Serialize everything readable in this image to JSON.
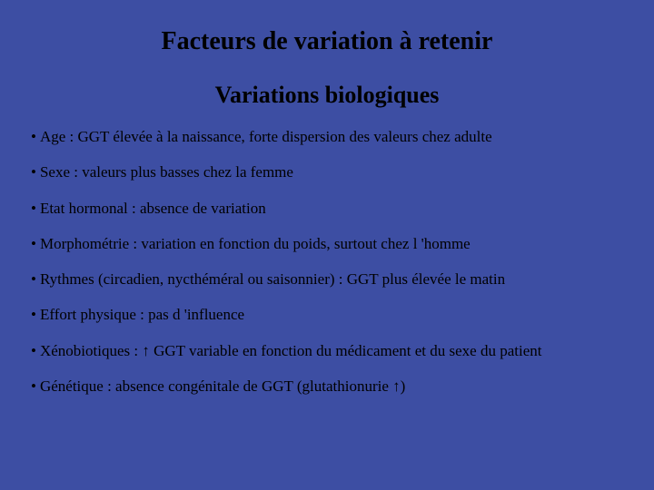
{
  "slide": {
    "background_color": "#3d4ea3",
    "text_color": "#000000",
    "font_family": "Times New Roman",
    "title": {
      "text": "Facteurs de variation à retenir",
      "fontsize": 28,
      "fontweight": "bold",
      "align": "center"
    },
    "subtitle": {
      "text": "Variations biologiques",
      "fontsize": 26,
      "fontweight": "normal",
      "align": "center"
    },
    "bullets": {
      "marker": "•",
      "fontsize": 17,
      "items": [
        "Age : GGT élevée à la naissance, forte dispersion des valeurs chez adulte",
        "Sexe : valeurs plus basses chez la femme",
        "Etat hormonal : absence de variation",
        "Morphométrie : variation en fonction du poids, surtout chez l 'homme",
        "Rythmes (circadien, nycthéméral ou saisonnier) : GGT plus élevée le matin",
        "Effort physique : pas d 'influence",
        "Xénobiotiques : ↑ GGT variable en fonction du médicament et du sexe du patient",
        "Génétique : absence congénitale de GGT (glutathionurie ↑)"
      ]
    }
  }
}
